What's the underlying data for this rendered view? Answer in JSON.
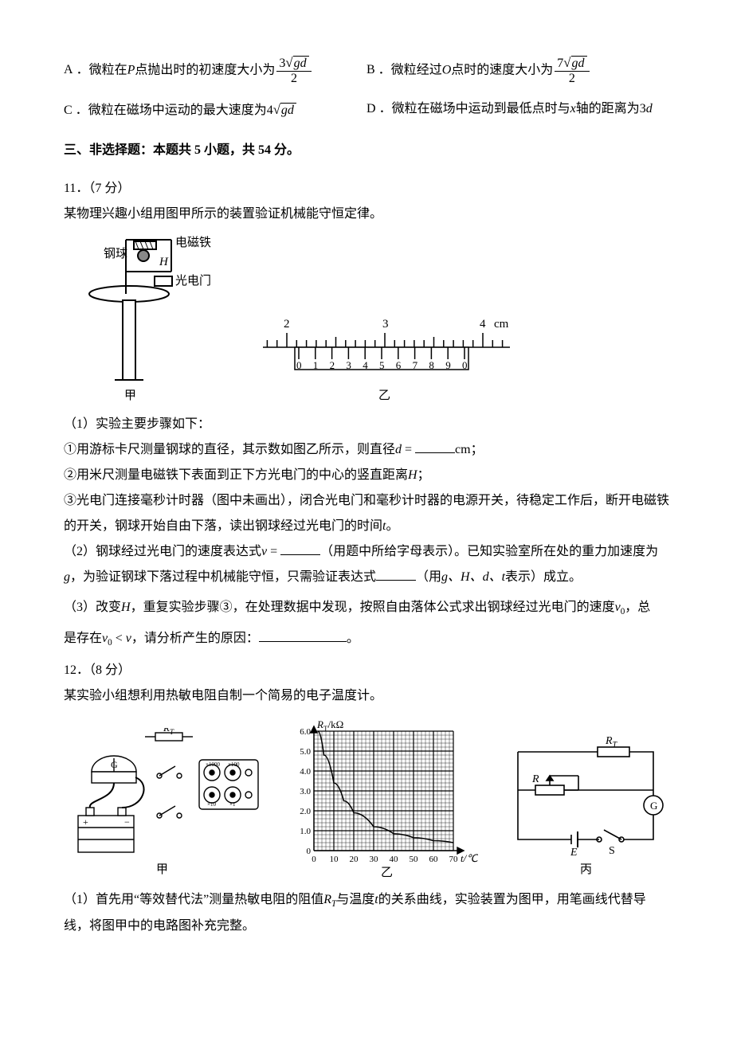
{
  "options": {
    "A": {
      "label": "A",
      "prefix": "微粒在",
      "var1": "P",
      "mid1": "点抛出时的初速度大小为",
      "frac_num_coeff": "3",
      "frac_rad": "gd",
      "frac_den": "2"
    },
    "B": {
      "label": "B",
      "prefix": "微粒经过",
      "var1": "O",
      "mid1": "点时的速度大小为",
      "frac_num_coeff": "7",
      "frac_rad": "gd",
      "frac_den": "2"
    },
    "C": {
      "label": "C",
      "text_pre": "微粒在磁场中运动的最大速度为",
      "coeff": "4",
      "rad": "gd"
    },
    "D": {
      "label": "D",
      "text_pre": "微粒在磁场中运动到最低点时与",
      "var": "x",
      "text_mid": "轴的距离为",
      "val": "3",
      "var2": "d"
    }
  },
  "section3": {
    "title": "三、非选择题：本题共 5 小题，共 54 分。"
  },
  "q11": {
    "num": "11．（7 分）",
    "intro": "某物理兴趣小组用图甲所示的装置验证机械能守恒定律。",
    "apparatus": {
      "steel_ball": "钢球",
      "electromagnet": "电磁铁",
      "H": "H",
      "photogate": "光电门",
      "label_jia": "甲",
      "label_yi": "乙",
      "vernier_top": [
        "2",
        "3",
        "4"
      ],
      "vernier_unit": "cm",
      "vernier_bottom": [
        "0",
        "1",
        "2",
        "3",
        "4",
        "5",
        "6",
        "7",
        "8",
        "9",
        "0"
      ]
    },
    "p1": "（1）实验主要步骤如下：",
    "p1a_pre": "①用游标卡尺测量钢球的直径，其示数如图乙所示，则直径",
    "p1a_var": "d",
    "p1a_eq": "=",
    "p1a_post": "cm；",
    "p1b_pre": "②用米尺测量电磁铁下表面到正下方光电门的中心的竖直距离",
    "p1b_var": "H",
    "p1b_post": "；",
    "p1c": "③光电门连接毫秒计时器（图中未画出），闭合光电门和毫秒计时器的电源开关，待稳定工作后，断开电磁铁的开关，钢球开始自由下落，读出钢球经过光电门的时间",
    "p1c_var": "t",
    "p1c_post": "。",
    "p2_pre": "（2）钢球经过光电门的速度表达式",
    "p2_var": "v",
    "p2_eq": "=",
    "p2_mid": "（用题中所给字母表示）。已知实验室所在处的重力加速度为",
    "p2_g": "g",
    "p2_mid2": "，为验证钢球下落过程中机械能守恒，只需验证表达式",
    "p2_mid3": "（用",
    "p2_vars": "g、H、d、t",
    "p2_post": "表示）成立。",
    "p3_pre": "（3）改变",
    "p3_H": "H",
    "p3_mid1": "，重复实验步骤③，在处理数据中发现，按照自由落体公式求出钢球经过光电门的速度",
    "p3_v0": "v",
    "p3_v0sub": "0",
    "p3_mid2": "，总",
    "p3_line2a": "是存在",
    "p3_v0b": "v",
    "p3_v0bsub": "0",
    "p3_lt": " < ",
    "p3_v": "v",
    "p3_mid3": "，请分析产生的原因：",
    "p3_post": "。"
  },
  "q12": {
    "num": "12．（8 分）",
    "intro": "某实验小组想利用热敏电阻自制一个简易的电子温度计。",
    "diagram": {
      "RT": "R",
      "RTsub": "T",
      "G": "G",
      "R": "R",
      "S": "S",
      "E": "E",
      "label_jia": "甲",
      "label_yi": "乙",
      "label_bing": "丙",
      "y_label": "R",
      "y_label_sub": "T",
      "y_unit": "/kΩ",
      "x_label": "t/℃",
      "y_ticks": [
        "0",
        "1.0",
        "2.0",
        "3.0",
        "4.0",
        "5.0",
        "6.0"
      ],
      "x_ticks": [
        "0",
        "10",
        "20",
        "30",
        "40",
        "50",
        "60",
        "70"
      ],
      "curve": {
        "points": [
          [
            2,
            6.0
          ],
          [
            5,
            4.8
          ],
          [
            10,
            3.4
          ],
          [
            15,
            2.5
          ],
          [
            20,
            1.9
          ],
          [
            30,
            1.2
          ],
          [
            40,
            0.85
          ],
          [
            50,
            0.65
          ],
          [
            60,
            0.5
          ],
          [
            70,
            0.4
          ]
        ],
        "color": "#000000",
        "stroke_width": 1.6
      },
      "grid_color": "#000000",
      "bg": "#ffffff",
      "dial_labels": [
        "×1",
        "×10",
        "×100",
        "×1000"
      ]
    },
    "p1_pre": "（1）首先用“等效替代法”测量热敏电阻的阻值",
    "p1_RT": "R",
    "p1_RTsub": "T",
    "p1_mid1": "与温度",
    "p1_t": "t",
    "p1_mid2": "的关系曲线，实验装置为图甲，用笔画线代替导线，将图甲中的电路图补充完整。"
  }
}
